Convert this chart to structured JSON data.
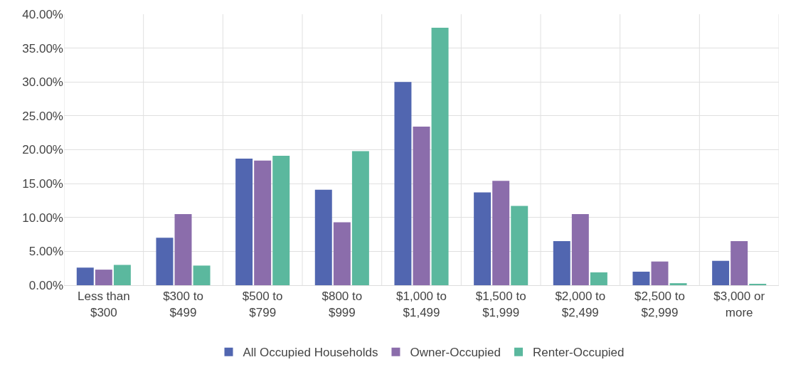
{
  "chart_data": {
    "type": "bar",
    "categories": [
      "Less than $300",
      "$300 to $499",
      "$500 to $799",
      "$800 to $999",
      "$1,000 to $1,499",
      "$1,500 to $1,999",
      "$2,000 to $2,499",
      "$2,500 to $2,999",
      "$3,000 or more"
    ],
    "series": [
      {
        "name": "All Occupied Households",
        "color": "#5166b0",
        "values": [
          2.6,
          7.0,
          18.7,
          14.1,
          30.0,
          13.7,
          6.5,
          2.0,
          3.6
        ]
      },
      {
        "name": "Owner-Occupied",
        "color": "#8b6dab",
        "values": [
          2.3,
          10.5,
          18.4,
          9.3,
          23.4,
          15.4,
          10.5,
          3.5,
          6.5
        ]
      },
      {
        "name": "Renter-Occupied",
        "color": "#5bb89e",
        "values": [
          3.0,
          2.9,
          19.1,
          19.8,
          38.0,
          11.7,
          1.9,
          0.3,
          0.2
        ]
      }
    ],
    "ylim": [
      0,
      40
    ],
    "yticks": [
      {
        "value": 0,
        "label": "0.00%"
      },
      {
        "value": 5,
        "label": "5.00%"
      },
      {
        "value": 10,
        "label": "10.00%"
      },
      {
        "value": 15,
        "label": "15.00%"
      },
      {
        "value": 20,
        "label": "20.00%"
      },
      {
        "value": 25,
        "label": "25.00%"
      },
      {
        "value": 30,
        "label": "30.00%"
      },
      {
        "value": 35,
        "label": "35.00%"
      },
      {
        "value": 40,
        "label": "40.00%"
      }
    ],
    "grid": true,
    "legend": "bottom"
  }
}
